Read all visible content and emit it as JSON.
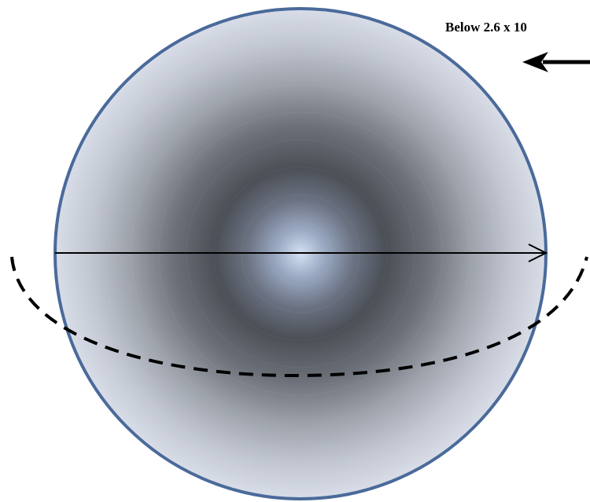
{
  "diagram": {
    "annotation_text": "Below 2.6 x 10",
    "colors": {
      "sphere_outline": "#4a6a9a",
      "sphere_center": "#c9d6ea",
      "sphere_mid": "#4b4f56",
      "sphere_edge": "#d3d9e6",
      "diameter_arrow": "#000000",
      "dashed_orbit": "#000000",
      "pointer_arrow": "#000000"
    }
  }
}
